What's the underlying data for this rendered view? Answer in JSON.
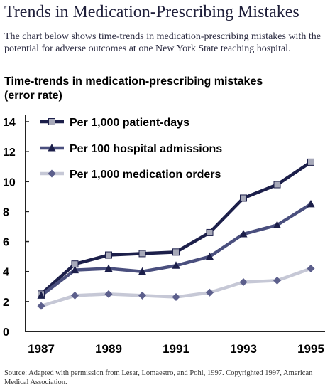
{
  "header": {
    "title": "Trends in Medication-Prescribing Mistakes",
    "intro": "The chart below shows time-trends in medication-prescribing mistakes with the potential for adverse outcomes at one New York State teaching hospital."
  },
  "chart_data": {
    "type": "line",
    "title": "Time-trends in medication-prescribing mistakes",
    "subtitle": "(error rate)",
    "xlabel": "",
    "ylabel": "",
    "x": [
      1987,
      1988,
      1989,
      1990,
      1991,
      1992,
      1993,
      1994,
      1995
    ],
    "x_tick_labels": [
      "1987",
      "1989",
      "1991",
      "1993",
      "1995"
    ],
    "y_ticks": [
      "0",
      "2",
      "4",
      "6",
      "8",
      "10",
      "12",
      "14"
    ],
    "ylim": [
      0,
      14
    ],
    "xlim": [
      1987,
      1995
    ],
    "grid": false,
    "legend_position": "top-left",
    "series": [
      {
        "name": "Per 1,000 patient-days",
        "values": [
          2.5,
          4.5,
          5.1,
          5.2,
          5.3,
          6.6,
          8.9,
          9.8,
          11.3
        ],
        "color": "#1c1f4a",
        "marker": "square"
      },
      {
        "name": "Per 100 hospital admissions",
        "values": [
          2.4,
          4.1,
          4.2,
          4.0,
          4.4,
          5.0,
          6.5,
          7.1,
          8.5
        ],
        "color": "#4a4f7e",
        "marker": "triangle"
      },
      {
        "name": "Per 1,000 medication orders",
        "values": [
          1.7,
          2.4,
          2.5,
          2.4,
          2.3,
          2.6,
          3.3,
          3.4,
          4.2
        ],
        "color": "#c6c8d6",
        "marker": "diamond"
      }
    ]
  },
  "footer": {
    "source": "Source: Adapted with permission from Lesar, Lomaestro, and Pohl, 1997. Copyrighted 1997, American Medical Association."
  }
}
